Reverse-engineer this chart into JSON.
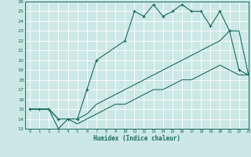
{
  "xlabel": "Humidex (Indice chaleur)",
  "bg_color": "#cce8e4",
  "grid_color": "#ffffff",
  "line_color": "#1a6b5a",
  "ylim": [
    13,
    26
  ],
  "xlim": [
    -0.5,
    23
  ],
  "yticks": [
    13,
    14,
    15,
    16,
    17,
    18,
    19,
    20,
    21,
    22,
    23,
    24,
    25,
    26
  ],
  "xticks": [
    0,
    1,
    2,
    3,
    4,
    5,
    6,
    7,
    8,
    9,
    10,
    11,
    12,
    13,
    14,
    15,
    16,
    17,
    18,
    19,
    20,
    21,
    22,
    23
  ],
  "line1_x": [
    0,
    1,
    2,
    3,
    4,
    5,
    6,
    7,
    10,
    11,
    12,
    13,
    14,
    15,
    16,
    17,
    18,
    19,
    20,
    21,
    22,
    23
  ],
  "line1_y": [
    15,
    15,
    15,
    14,
    14,
    14,
    17,
    20,
    22,
    25,
    24.5,
    25.7,
    24.5,
    25,
    25.7,
    25,
    25,
    23.5,
    25,
    23,
    19,
    18.5
  ],
  "line2_x": [
    0,
    2,
    3,
    4,
    5,
    6,
    7,
    8,
    9,
    10,
    11,
    12,
    13,
    14,
    15,
    16,
    17,
    18,
    19,
    20,
    21,
    22,
    23
  ],
  "line2_y": [
    15,
    15,
    14,
    14,
    14,
    14.5,
    15.5,
    16,
    16.5,
    17,
    17.5,
    18,
    18.5,
    19,
    19.5,
    20,
    20.5,
    21,
    21.5,
    22,
    23,
    23,
    18.5
  ],
  "line3_x": [
    0,
    2,
    3,
    4,
    5,
    6,
    7,
    8,
    9,
    10,
    11,
    12,
    13,
    14,
    15,
    16,
    17,
    18,
    19,
    20,
    21,
    22,
    23
  ],
  "line3_y": [
    15,
    15,
    13,
    14,
    13.5,
    14,
    14.5,
    15,
    15.5,
    15.5,
    16,
    16.5,
    17,
    17,
    17.5,
    18,
    18,
    18.5,
    19,
    19.5,
    19,
    18.5,
    18.5
  ]
}
